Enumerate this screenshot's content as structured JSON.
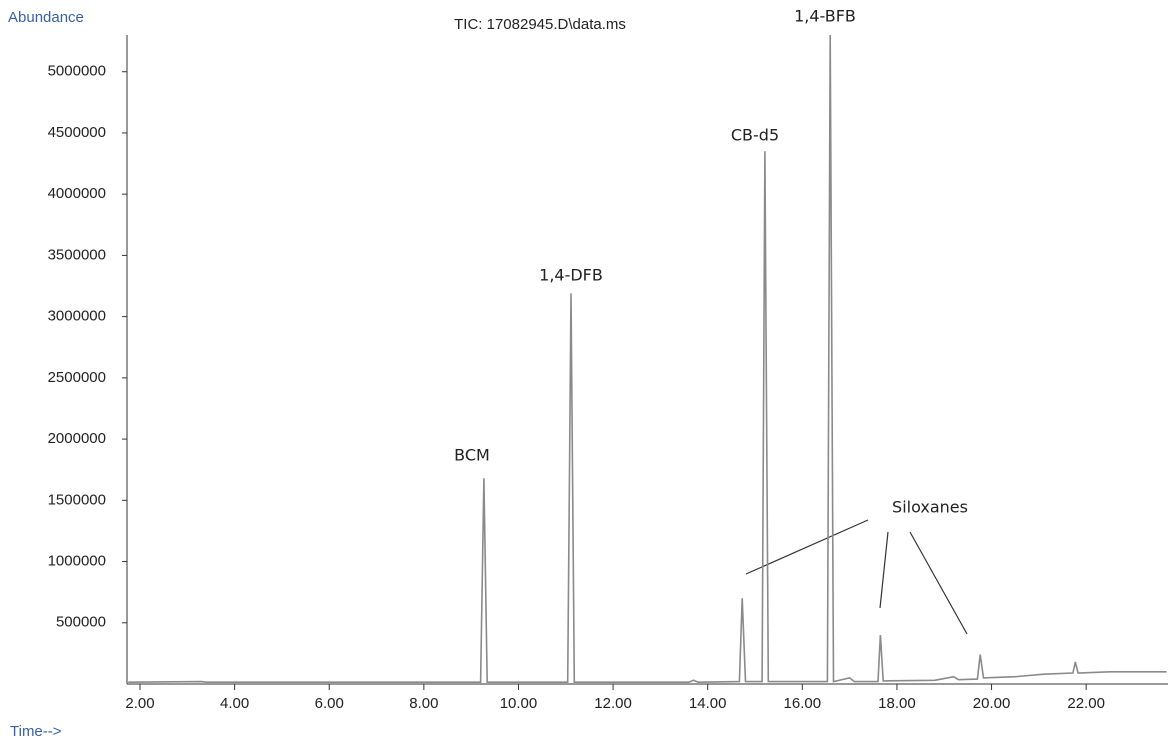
{
  "chart_data": {
    "type": "line",
    "title": "TIC: 17082945.D\\data.ms",
    "y_label": "Abundance",
    "x_label": "Time-->",
    "annotations": [
      "BCM",
      "1,4-DFB",
      "CB-d5",
      "1,4-BFB",
      "Siloxanes"
    ],
    "color": "#8a8a8a",
    "x": [
      1.75,
      3.3,
      3.4,
      9.2,
      9.27,
      9.34,
      11.04,
      11.11,
      11.18,
      13.6,
      13.7,
      13.8,
      14.67,
      14.73,
      14.8,
      15.15,
      15.21,
      15.28,
      16.53,
      16.59,
      16.66,
      17.0,
      17.1,
      17.6,
      17.65,
      17.71,
      18.8,
      19.2,
      19.3,
      19.7,
      19.76,
      19.83,
      20.5,
      21.1,
      21.72,
      21.77,
      21.83,
      22.5,
      23.7
    ],
    "values": [
      15000,
      20000,
      15000,
      15000,
      1680000,
      15000,
      15000,
      3190000,
      15000,
      15000,
      30000,
      15000,
      20000,
      700000,
      20000,
      20000,
      4350000,
      20000,
      20000,
      5300000,
      20000,
      50000,
      20000,
      20000,
      400000,
      25000,
      30000,
      60000,
      35000,
      40000,
      240000,
      50000,
      60000,
      80000,
      90000,
      180000,
      90000,
      100000,
      100000
    ],
    "xlim": [
      1.725,
      23.73
    ],
    "ylim": [
      0,
      5300000
    ],
    "xticks": [
      {
        "value": 2,
        "label": "2.00"
      },
      {
        "value": 4,
        "label": "4.00"
      },
      {
        "value": 6,
        "label": "6.00"
      },
      {
        "value": 8,
        "label": "8.00"
      },
      {
        "value": 10,
        "label": "10.00"
      },
      {
        "value": 12,
        "label": "12.00"
      },
      {
        "value": 14,
        "label": "14.00"
      },
      {
        "value": 16,
        "label": "16.00"
      },
      {
        "value": 18,
        "label": "18.00"
      },
      {
        "value": 20,
        "label": "20.00"
      },
      {
        "value": 22,
        "label": "22.00"
      }
    ],
    "yticks": [
      500000,
      1000000,
      1500000,
      2000000,
      2500000,
      3000000,
      3500000,
      4000000,
      4500000,
      5000000
    ]
  }
}
